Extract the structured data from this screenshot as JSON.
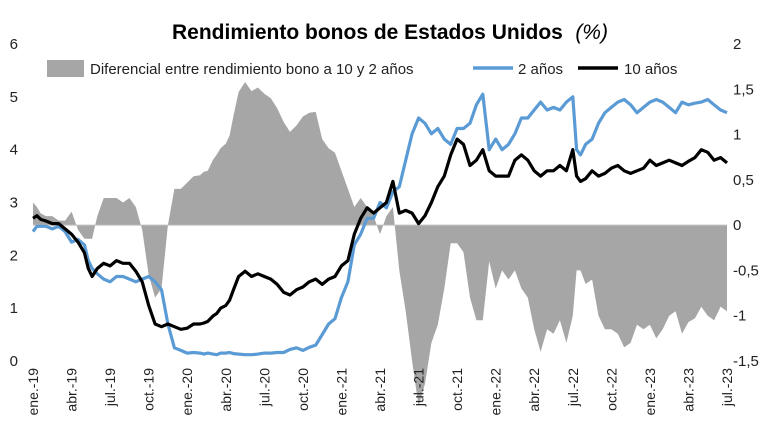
{
  "chart_data": {
    "type": "line",
    "title": "Rendimiento bonos de Estados Unidos",
    "title_unit": "(%)",
    "x_tick_labels": [
      "ene.-19",
      "abr.-19",
      "jul.-19",
      "oct.-19",
      "ene.-20",
      "abr.-20",
      "jul.-20",
      "oct.-20",
      "ene.-21",
      "abr.-21",
      "jul.-21",
      "oct.-21",
      "ene.-22",
      "abr.-22",
      "jul.-22",
      "oct.-22",
      "ene.-23",
      "abr.-23",
      "jul.-23"
    ],
    "y_left": {
      "ticks": [
        "0",
        "1",
        "2",
        "3",
        "4",
        "5",
        "6"
      ],
      "ylim": [
        0,
        6
      ]
    },
    "y_right": {
      "ticks": [
        "-1,5",
        "-1",
        "-0,5",
        "0",
        "0,5",
        "1",
        "1,5",
        "2"
      ],
      "ylim": [
        -1.5,
        2
      ]
    },
    "legend": {
      "spread": "Diferencial entre rendimiento bono a 10 y 2 años",
      "two_year": "2 años",
      "ten_year": "10 años"
    },
    "colors": {
      "spread": "#a6a6a6",
      "two_year": "#5b9bd5",
      "ten_year": "#000000"
    },
    "series": [
      {
        "name": "2 años",
        "axis": "left",
        "x": [
          0,
          0.3,
          0.6,
          1,
          1.5,
          2,
          2.5,
          3,
          3.5,
          4,
          4.3,
          4.6,
          5,
          5.5,
          6,
          6.5,
          7,
          7.5,
          8,
          8.5,
          9,
          9.5,
          10,
          10.5,
          11,
          11.5,
          12,
          12.5,
          13,
          13.3,
          13.6,
          14,
          14.3,
          14.6,
          15,
          15.3,
          15.6,
          16,
          16.5,
          17,
          17.5,
          18,
          18.5,
          19,
          19.5,
          20,
          20.5,
          21,
          21.5,
          22,
          22.5,
          23,
          23.5,
          24,
          24.5,
          25,
          25.5,
          26,
          26.5,
          27,
          27.5,
          28,
          28.5,
          29,
          29.5,
          30,
          30.5,
          31,
          31.5,
          32,
          32.5,
          33,
          33.5,
          34,
          34.5,
          35,
          35.5,
          36,
          36.5,
          37,
          37.5,
          38,
          38.5,
          39,
          39.5,
          40,
          40.5,
          41,
          41.5,
          42,
          42.3,
          42.6,
          43,
          43.5,
          44,
          44.5,
          45,
          45.5,
          46,
          46.5,
          47,
          47.5,
          48,
          48.5,
          49,
          49.5,
          50,
          50.5,
          51,
          51.5,
          52,
          52.5,
          53,
          53.5,
          54
        ],
        "values": [
          2.45,
          2.55,
          2.55,
          2.55,
          2.5,
          2.55,
          2.45,
          2.25,
          2.3,
          2.2,
          1.9,
          1.75,
          1.65,
          1.55,
          1.5,
          1.6,
          1.6,
          1.55,
          1.5,
          1.55,
          1.6,
          1.5,
          1.35,
          0.7,
          0.25,
          0.2,
          0.15,
          0.16,
          0.15,
          0.13,
          0.15,
          0.13,
          0.12,
          0.15,
          0.15,
          0.16,
          0.14,
          0.13,
          0.12,
          0.12,
          0.13,
          0.15,
          0.15,
          0.16,
          0.16,
          0.22,
          0.25,
          0.2,
          0.26,
          0.3,
          0.5,
          0.7,
          0.8,
          1.2,
          1.5,
          2.2,
          2.4,
          2.7,
          2.7,
          3.0,
          2.9,
          3.2,
          3.3,
          3.8,
          4.3,
          4.6,
          4.5,
          4.3,
          4.4,
          4.2,
          4.1,
          4.4,
          4.4,
          4.5,
          4.85,
          5.05,
          4.0,
          4.2,
          4.0,
          4.1,
          4.3,
          4.6,
          4.6,
          4.75,
          4.9,
          4.75,
          4.8,
          4.75,
          4.9,
          5.0,
          4.0,
          3.9,
          4.1,
          4.2,
          4.5,
          4.7,
          4.8,
          4.9,
          4.95,
          4.85,
          4.7,
          4.8,
          4.9,
          4.95,
          4.9,
          4.8,
          4.7,
          4.9,
          4.85,
          4.88,
          4.9,
          4.95,
          4.85,
          4.75,
          4.7
        ]
      },
      {
        "name": "10 años",
        "axis": "left",
        "x": [
          0,
          0.3,
          0.6,
          1,
          1.5,
          2,
          2.5,
          3,
          3.5,
          4,
          4.3,
          4.6,
          5,
          5.5,
          6,
          6.5,
          7,
          7.5,
          8,
          8.5,
          9,
          9.5,
          10,
          10.5,
          11,
          11.5,
          12,
          12.5,
          13,
          13.3,
          13.6,
          14,
          14.3,
          14.6,
          15,
          15.3,
          15.6,
          16,
          16.5,
          17,
          17.5,
          18,
          18.5,
          19,
          19.5,
          20,
          20.5,
          21,
          21.5,
          22,
          22.5,
          23,
          23.5,
          24,
          24.5,
          25,
          25.5,
          26,
          26.5,
          27,
          27.5,
          28,
          28.5,
          29,
          29.5,
          30,
          30.5,
          31,
          31.5,
          32,
          32.5,
          33,
          33.5,
          34,
          34.5,
          35,
          35.5,
          36,
          36.5,
          37,
          37.5,
          38,
          38.5,
          39,
          39.5,
          40,
          40.5,
          41,
          41.5,
          42,
          42.3,
          42.6,
          43,
          43.5,
          44,
          44.5,
          45,
          45.5,
          46,
          46.5,
          47,
          47.5,
          48,
          48.5,
          49,
          49.5,
          50,
          50.5,
          51,
          51.5,
          52,
          52.5,
          53,
          53.5,
          54
        ],
        "values": [
          2.7,
          2.75,
          2.68,
          2.65,
          2.6,
          2.6,
          2.5,
          2.4,
          2.25,
          2.05,
          1.75,
          1.6,
          1.75,
          1.85,
          1.8,
          1.9,
          1.85,
          1.85,
          1.7,
          1.5,
          1.05,
          0.7,
          0.65,
          0.7,
          0.65,
          0.6,
          0.62,
          0.7,
          0.7,
          0.72,
          0.75,
          0.85,
          0.9,
          1.0,
          1.05,
          1.15,
          1.35,
          1.6,
          1.7,
          1.6,
          1.65,
          1.6,
          1.55,
          1.45,
          1.3,
          1.25,
          1.35,
          1.4,
          1.5,
          1.55,
          1.45,
          1.55,
          1.6,
          1.8,
          1.9,
          2.4,
          2.7,
          2.9,
          2.8,
          2.9,
          3.0,
          3.4,
          2.8,
          2.85,
          2.8,
          2.6,
          2.75,
          3.0,
          3.3,
          3.5,
          3.9,
          4.2,
          4.1,
          3.7,
          3.8,
          4.0,
          3.6,
          3.5,
          3.5,
          3.5,
          3.8,
          3.9,
          3.8,
          3.6,
          3.5,
          3.6,
          3.6,
          3.7,
          3.6,
          4.0,
          3.5,
          3.4,
          3.45,
          3.6,
          3.5,
          3.55,
          3.65,
          3.7,
          3.6,
          3.55,
          3.6,
          3.65,
          3.8,
          3.7,
          3.75,
          3.8,
          3.75,
          3.7,
          3.78,
          3.85,
          4.0,
          3.95,
          3.8,
          3.85,
          3.75
        ]
      }
    ]
  }
}
